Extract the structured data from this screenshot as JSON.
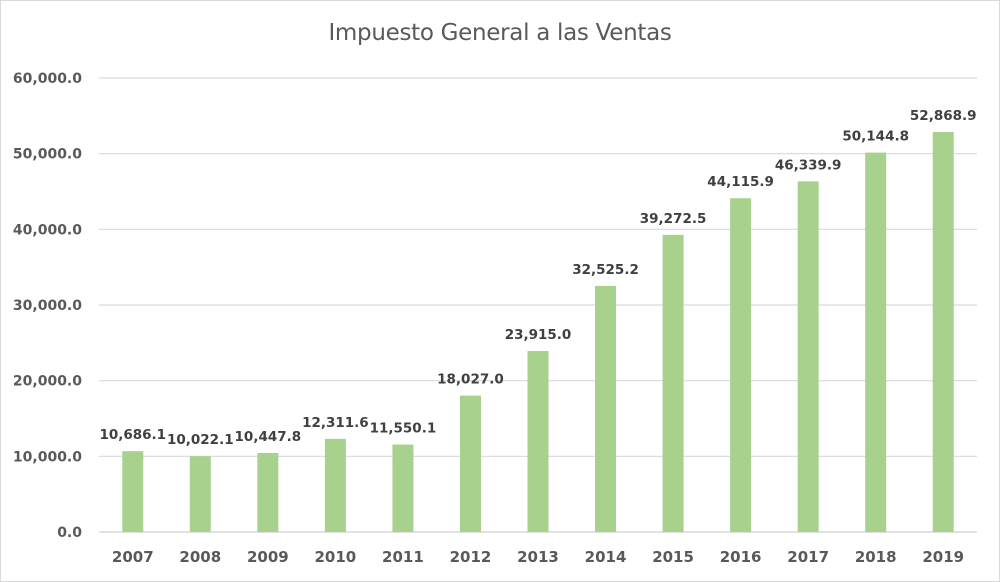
{
  "chart_data": {
    "type": "bar",
    "title": "Impuesto General a las Ventas",
    "xlabel": "",
    "ylabel": "",
    "categories": [
      "2007",
      "2008",
      "2009",
      "2010",
      "2011",
      "2012",
      "2013",
      "2014",
      "2015",
      "2016",
      "2017",
      "2018",
      "2019"
    ],
    "values": [
      10686.1,
      10022.1,
      10447.8,
      12311.6,
      11550.1,
      18027.0,
      23915.0,
      32525.2,
      39272.5,
      44115.9,
      46339.9,
      50144.8,
      52868.9
    ],
    "data_labels": [
      "10,686.1",
      "10,022.1",
      "10,447.8",
      "12,311.6",
      "11,550.1",
      "18,027.0",
      "23,915.0",
      "32,525.2",
      "39,272.5",
      "44,115.9",
      "46,339.9",
      "50,144.8",
      "52,868.9"
    ],
    "ylim": [
      0,
      60000
    ],
    "yticks": [
      0,
      10000,
      20000,
      30000,
      40000,
      50000,
      60000
    ],
    "ytick_labels": [
      "0.0",
      "10,000.0",
      "20,000.0",
      "30,000.0",
      "40,000.0",
      "50,000.0",
      "60,000.0"
    ],
    "grid": true,
    "legend": "none",
    "bar_color": "#a9d18e",
    "grid_color": "#d9d9d9"
  }
}
